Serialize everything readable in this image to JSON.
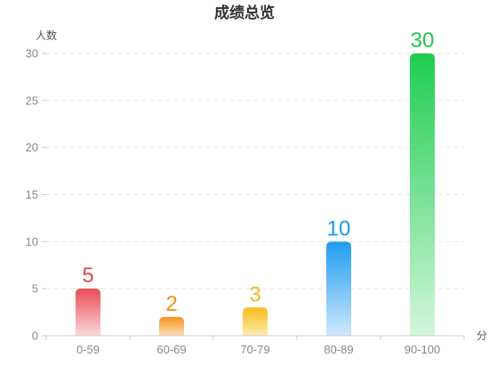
{
  "chart_data": {
    "type": "bar",
    "title": "成绩总览",
    "ylabel": "人数",
    "xlabel": "分",
    "categories": [
      "0-59",
      "60-69",
      "70-79",
      "80-89",
      "90-100"
    ],
    "values": [
      5,
      2,
      3,
      10,
      30
    ],
    "ylim": [
      0,
      30
    ],
    "yticks": [
      "0",
      "5",
      "10",
      "15",
      "20",
      "25",
      "30"
    ],
    "grid": "horizontal-dashed",
    "bar_colors": [
      {
        "top": "#e84e55",
        "bottom": "#fbd7d9",
        "label": "#e0474f"
      },
      {
        "top": "#f5931f",
        "bottom": "#fde0b5",
        "label": "#f0901e"
      },
      {
        "top": "#f7bc1c",
        "bottom": "#fdebb0",
        "label": "#f2b51c"
      },
      {
        "top": "#1f9cf0",
        "bottom": "#cfe9fc",
        "label": "#1d97ec"
      },
      {
        "top": "#1fcc4f",
        "bottom": "#d2f6dc",
        "label": "#25c552"
      }
    ]
  }
}
